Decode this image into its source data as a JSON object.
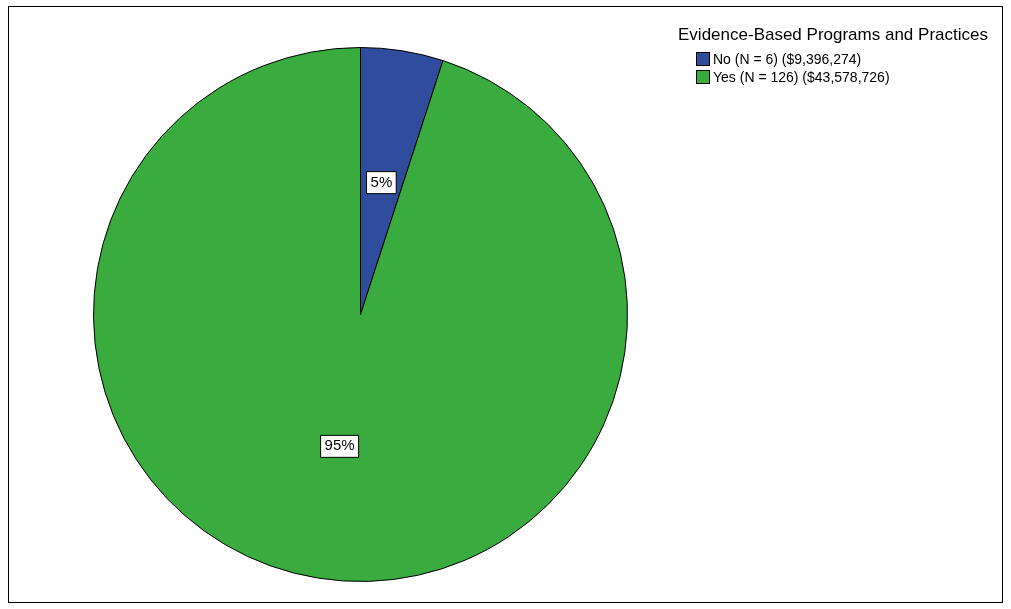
{
  "chart_data": {
    "type": "pie",
    "legend_title": "Evidence-Based Programs and Practices",
    "categories": [
      "No (N = 6) ($9,396,274)",
      "Yes (N = 126) ($43,578,726)"
    ],
    "values": [
      5,
      95
    ],
    "colors": [
      "#2f4d9c",
      "#3aab3f"
    ],
    "value_labels": [
      "5%",
      "95%"
    ],
    "legend": "top right"
  }
}
